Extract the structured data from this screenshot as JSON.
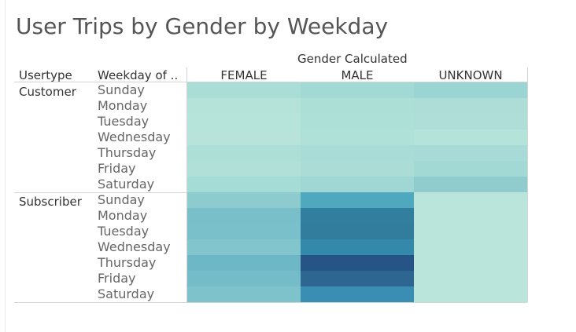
{
  "title": "User Trips by Gender by Weekday",
  "column_header_group": "Gender Calculated",
  "row_headers": {
    "usertype": "Usertype",
    "weekday": "Weekday of .."
  },
  "chart_data": {
    "type": "heatmap",
    "title": "User Trips by Gender by Weekday",
    "columns_title": "Gender Calculated",
    "columns": [
      "FEMALE",
      "MALE",
      "UNKNOWN"
    ],
    "row_groups": [
      {
        "usertype": "Customer",
        "weekdays": [
          "Sunday",
          "Monday",
          "Tuesday",
          "Wednesday",
          "Thursday",
          "Friday",
          "Saturday"
        ],
        "colors": [
          [
            "#a9ddd6",
            "#a2d9d4",
            "#9ad5d3"
          ],
          [
            "#b5e2d9",
            "#ace0d6",
            "#aedcd7"
          ],
          [
            "#b6e3da",
            "#ade0d7",
            "#afded8"
          ],
          [
            "#b7e3da",
            "#b0e1d8",
            "#b4e3d9"
          ],
          [
            "#aedfd7",
            "#a9dcd6",
            "#a8dad7"
          ],
          [
            "#b0e0d8",
            "#abdcd6",
            "#a3d9d5"
          ],
          [
            "#a5dcd5",
            "#a0d6d3",
            "#90cbcd"
          ]
        ]
      },
      {
        "usertype": "Subscriber",
        "weekdays": [
          "Sunday",
          "Monday",
          "Tuesday",
          "Wednesday",
          "Thursday",
          "Friday",
          "Saturday"
        ],
        "colors": [
          [
            "#8dcbcf",
            "#4fa9be",
            "#bae5da"
          ],
          [
            "#79bfca",
            "#317e9f",
            "#bae5da"
          ],
          [
            "#7ac0cb",
            "#327c9e",
            "#bae5da"
          ],
          [
            "#82c5cc",
            "#3489aa",
            "#bae5da"
          ],
          [
            "#6db7c6",
            "#265487",
            "#bae5da"
          ],
          [
            "#74bcc8",
            "#2d6691",
            "#bae5da"
          ],
          [
            "#7ec2cb",
            "#3a8db3",
            "#bae5da"
          ]
        ]
      }
    ]
  }
}
